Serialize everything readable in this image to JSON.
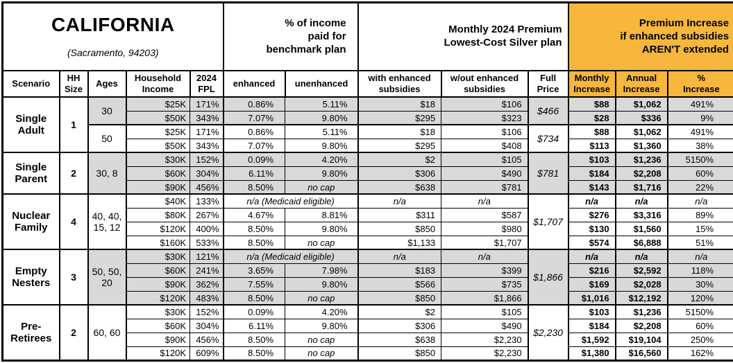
{
  "title": {
    "state": "CALIFORNIA",
    "location": "(Sacramento, 94203)"
  },
  "top_headers": {
    "income_share": "% of income\npaid for\nbenchmark plan",
    "premium": "Monthly 2024 Premium\nLowest-Cost Silver plan",
    "increase": "Premium Increase\nif enhanced subsidies\nAREN'T extended"
  },
  "columns": {
    "scenario": "Scenario",
    "hh_size": "HH\nSize",
    "ages": "Ages",
    "income": "Household\nIncome",
    "fpl": "2024\nFPL",
    "enhanced": "enhanced",
    "unenhanced": "unenhanced",
    "with_sub": "with enhanced\nsubsidies",
    "wout_sub": "w/out enhanced\nsubsidies",
    "full_price": "Full\nPrice",
    "monthly": "Monthly\nIncrease",
    "annual": "Annual\nIncrease",
    "pct": "%\nIncrease"
  },
  "colors": {
    "header_orange": "#F6B73C",
    "row_shade": "#D9D9D9",
    "border": "#000000"
  },
  "table": {
    "groups": [
      {
        "scenario": "Single Adult",
        "hh_size": "1",
        "age_groups": [
          {
            "ages": "30",
            "full_price": "$466",
            "shaded": true,
            "rows": [
              {
                "income": "$25K",
                "fpl": "171%",
                "enhanced": "0.86%",
                "unenhanced": "5.11%",
                "with_sub": "$18",
                "wout_sub": "$106",
                "monthly": "$88",
                "annual": "$1,062",
                "pct": "491%"
              },
              {
                "income": "$50K",
                "fpl": "343%",
                "enhanced": "7.07%",
                "unenhanced": "9.80%",
                "with_sub": "$295",
                "wout_sub": "$323",
                "monthly": "$28",
                "annual": "$336",
                "pct": "9%"
              }
            ]
          },
          {
            "ages": "50",
            "full_price": "$734",
            "shaded": false,
            "rows": [
              {
                "income": "$25K",
                "fpl": "171%",
                "enhanced": "0.86%",
                "unenhanced": "5.11%",
                "with_sub": "$18",
                "wout_sub": "$106",
                "monthly": "$88",
                "annual": "$1,062",
                "pct": "491%"
              },
              {
                "income": "$50K",
                "fpl": "343%",
                "enhanced": "7.07%",
                "unenhanced": "9.80%",
                "with_sub": "$295",
                "wout_sub": "$408",
                "monthly": "$113",
                "annual": "$1,360",
                "pct": "38%"
              }
            ]
          }
        ]
      },
      {
        "scenario": "Single Parent",
        "hh_size": "2",
        "age_groups": [
          {
            "ages": "30, 8",
            "full_price": "$781",
            "shaded": true,
            "rows": [
              {
                "income": "$30K",
                "fpl": "152%",
                "enhanced": "0.09%",
                "unenhanced": "4.20%",
                "with_sub": "$2",
                "wout_sub": "$105",
                "monthly": "$103",
                "annual": "$1,236",
                "pct": "5150%"
              },
              {
                "income": "$60K",
                "fpl": "304%",
                "enhanced": "6.11%",
                "unenhanced": "9.80%",
                "with_sub": "$306",
                "wout_sub": "$490",
                "monthly": "$184",
                "annual": "$2,208",
                "pct": "60%"
              },
              {
                "income": "$90K",
                "fpl": "456%",
                "enhanced": "8.50%",
                "unenhanced": "no cap",
                "with_sub": "$638",
                "wout_sub": "$781",
                "monthly": "$143",
                "annual": "$1,716",
                "pct": "22%"
              }
            ]
          }
        ]
      },
      {
        "scenario": "Nuclear Family",
        "hh_size": "4",
        "age_groups": [
          {
            "ages": "40, 40, 15, 12",
            "full_price": "$1,707",
            "shaded": false,
            "rows": [
              {
                "income": "$40K",
                "fpl": "133%",
                "medicaid": "n/a (Medicaid eligible)",
                "with_sub": "n/a",
                "wout_sub": "n/a",
                "monthly": "n/a",
                "annual": "n/a",
                "pct": "n/a"
              },
              {
                "income": "$80K",
                "fpl": "267%",
                "enhanced": "4.67%",
                "unenhanced": "8.81%",
                "with_sub": "$311",
                "wout_sub": "$587",
                "monthly": "$276",
                "annual": "$3,316",
                "pct": "89%"
              },
              {
                "income": "$120K",
                "fpl": "400%",
                "enhanced": "8.50%",
                "unenhanced": "9.80%",
                "with_sub": "$850",
                "wout_sub": "$980",
                "monthly": "$130",
                "annual": "$1,560",
                "pct": "15%"
              },
              {
                "income": "$160K",
                "fpl": "533%",
                "enhanced": "8.50%",
                "unenhanced": "no cap",
                "with_sub": "$1,133",
                "wout_sub": "$1,707",
                "monthly": "$574",
                "annual": "$6,888",
                "pct": "51%"
              }
            ]
          }
        ]
      },
      {
        "scenario": "Empty Nesters",
        "hh_size": "3",
        "age_groups": [
          {
            "ages": "50, 50, 20",
            "full_price": "$1,866",
            "shaded": true,
            "rows": [
              {
                "income": "$30K",
                "fpl": "121%",
                "medicaid": "n/a (Medicaid eligible)",
                "with_sub": "n/a",
                "wout_sub": "n/a",
                "monthly": "n/a",
                "annual": "n/a",
                "pct": "n/a"
              },
              {
                "income": "$60K",
                "fpl": "241%",
                "enhanced": "3.65%",
                "unenhanced": "7.98%",
                "with_sub": "$183",
                "wout_sub": "$399",
                "monthly": "$216",
                "annual": "$2,592",
                "pct": "118%"
              },
              {
                "income": "$90K",
                "fpl": "362%",
                "enhanced": "7.55%",
                "unenhanced": "9.80%",
                "with_sub": "$566",
                "wout_sub": "$735",
                "monthly": "$169",
                "annual": "$2,028",
                "pct": "30%"
              },
              {
                "income": "$120K",
                "fpl": "483%",
                "enhanced": "8.50%",
                "unenhanced": "no cap",
                "with_sub": "$850",
                "wout_sub": "$1,866",
                "monthly": "$1,016",
                "annual": "$12,192",
                "pct": "120%"
              }
            ]
          }
        ]
      },
      {
        "scenario": "Pre-Retirees",
        "hh_size": "2",
        "age_groups": [
          {
            "ages": "60, 60",
            "full_price": "$2,230",
            "shaded": false,
            "rows": [
              {
                "income": "$30K",
                "fpl": "152%",
                "enhanced": "0.09%",
                "unenhanced": "4.20%",
                "with_sub": "$2",
                "wout_sub": "$105",
                "monthly": "$103",
                "annual": "$1,236",
                "pct": "5150%"
              },
              {
                "income": "$60K",
                "fpl": "304%",
                "enhanced": "6.11%",
                "unenhanced": "9.80%",
                "with_sub": "$306",
                "wout_sub": "$490",
                "monthly": "$184",
                "annual": "$2,208",
                "pct": "60%"
              },
              {
                "income": "$90K",
                "fpl": "456%",
                "enhanced": "8.50%",
                "unenhanced": "no cap",
                "with_sub": "$638",
                "wout_sub": "$2,230",
                "monthly": "$1,592",
                "annual": "$19,104",
                "pct": "250%"
              },
              {
                "income": "$120K",
                "fpl": "609%",
                "enhanced": "8.50%",
                "unenhanced": "no cap",
                "with_sub": "$850",
                "wout_sub": "$2,230",
                "monthly": "$1,380",
                "annual": "$16,560",
                "pct": "162%"
              }
            ]
          }
        ]
      }
    ]
  }
}
